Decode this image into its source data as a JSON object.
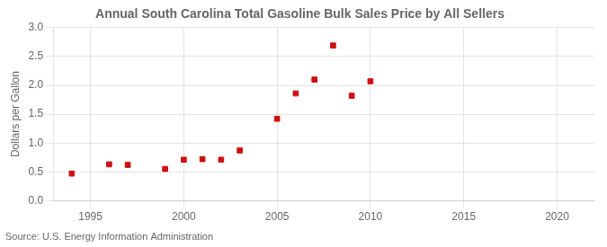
{
  "chart_data": {
    "type": "scatter",
    "title": "Annual South Carolina Total Gasoline Bulk Sales Price by All Sellers",
    "ylabel": "Dollars per Gallon",
    "annotation": "Source: U.S. Energy Information Administration",
    "x": [
      1994,
      1996,
      1997,
      1999,
      2000,
      2001,
      2002,
      2003,
      2005,
      2006,
      2007,
      2008,
      2009,
      2010
    ],
    "values": [
      0.47,
      0.63,
      0.62,
      0.55,
      0.71,
      0.72,
      0.71,
      0.87,
      1.42,
      1.86,
      2.1,
      2.69,
      1.82,
      2.07
    ],
    "color": "#cc1111",
    "marker": "square",
    "xlim": [
      1993,
      2022
    ],
    "xticks": [
      1995,
      2000,
      2005,
      2010,
      2015,
      2020
    ],
    "ylim": [
      0.0,
      3.0
    ],
    "yticks": [
      {
        "value": 0,
        "label": "0.0"
      },
      0.5,
      {
        "value": 1,
        "label": "1.0"
      },
      1.5,
      {
        "value": 2,
        "label": "2.0"
      },
      2.5,
      {
        "value": 3,
        "label": "3.0"
      }
    ],
    "grid": true
  }
}
